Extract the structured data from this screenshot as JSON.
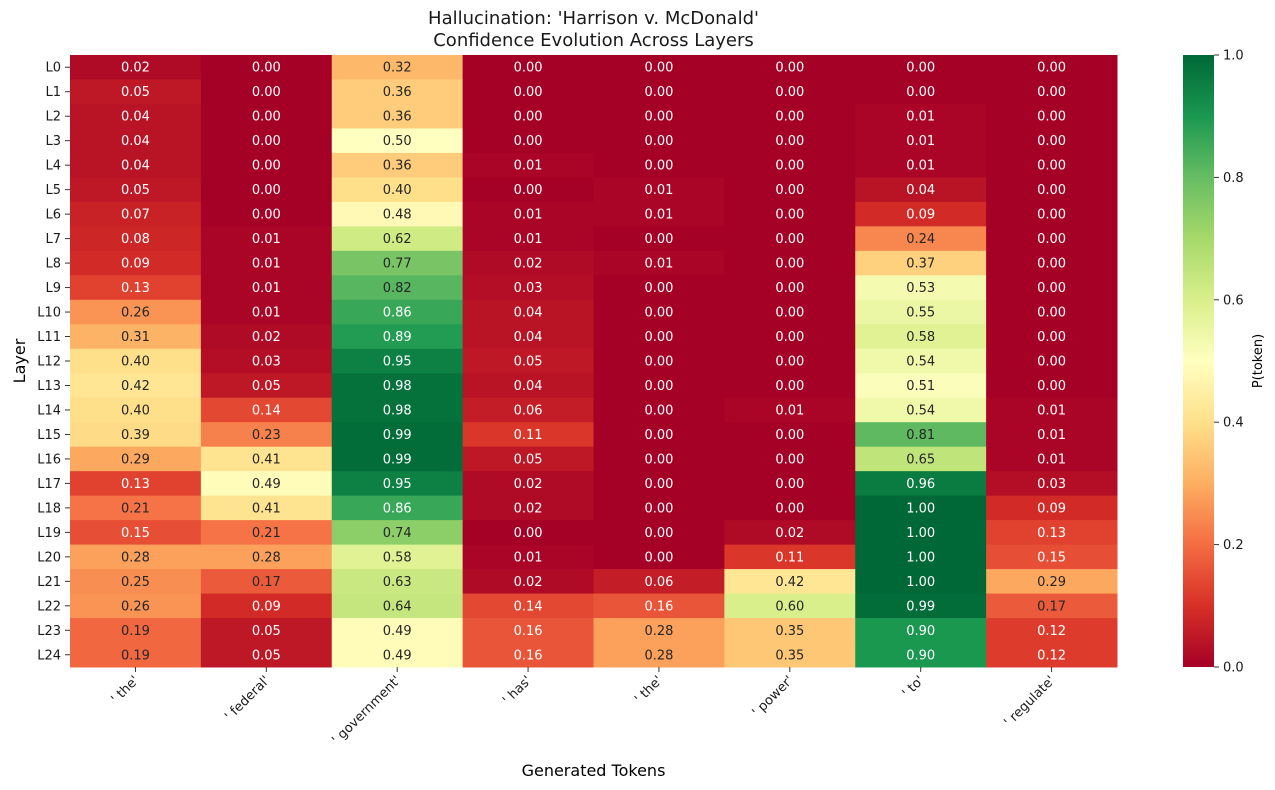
{
  "chart_data": {
    "type": "heatmap",
    "title": "Hallucination: 'Harrison v. McDonald'",
    "subtitle": "Confidence Evolution Across Layers",
    "xlabel": "Generated Tokens",
    "ylabel": "Layer",
    "colorbar_label": "P(token)",
    "colormap": "RdYlGn",
    "vmin": 0,
    "vmax": 1,
    "colorbar_ticks": [
      "0.0",
      "0.2",
      "0.4",
      "0.6",
      "0.8",
      "1.0"
    ],
    "x_tick_labels": [
      "' the'",
      "' federal'",
      "' government'",
      "' has'",
      "' the'",
      "' power'",
      "' to'",
      "' regulate'"
    ],
    "y_tick_labels": [
      "L0",
      "L1",
      "L2",
      "L3",
      "L4",
      "L5",
      "L6",
      "L7",
      "L8",
      "L9",
      "L10",
      "L11",
      "L12",
      "L13",
      "L14",
      "L15",
      "L16",
      "L17",
      "L18",
      "L19",
      "L20",
      "L21",
      "L22",
      "L23",
      "L24"
    ],
    "values": [
      [
        0.02,
        0.0,
        0.32,
        0.0,
        0.0,
        0.0,
        0.0,
        0.0
      ],
      [
        0.05,
        0.0,
        0.36,
        0.0,
        0.0,
        0.0,
        0.0,
        0.0
      ],
      [
        0.04,
        0.0,
        0.36,
        0.0,
        0.0,
        0.0,
        0.01,
        0.0
      ],
      [
        0.04,
        0.0,
        0.5,
        0.0,
        0.0,
        0.0,
        0.01,
        0.0
      ],
      [
        0.04,
        0.0,
        0.36,
        0.01,
        0.0,
        0.0,
        0.01,
        0.0
      ],
      [
        0.05,
        0.0,
        0.4,
        0.0,
        0.01,
        0.0,
        0.04,
        0.0
      ],
      [
        0.07,
        0.0,
        0.48,
        0.01,
        0.01,
        0.0,
        0.09,
        0.0
      ],
      [
        0.08,
        0.01,
        0.62,
        0.01,
        0.0,
        0.0,
        0.24,
        0.0
      ],
      [
        0.09,
        0.01,
        0.77,
        0.02,
        0.01,
        0.0,
        0.37,
        0.0
      ],
      [
        0.13,
        0.01,
        0.82,
        0.03,
        0.0,
        0.0,
        0.53,
        0.0
      ],
      [
        0.26,
        0.01,
        0.86,
        0.04,
        0.0,
        0.0,
        0.55,
        0.0
      ],
      [
        0.31,
        0.02,
        0.89,
        0.04,
        0.0,
        0.0,
        0.58,
        0.0
      ],
      [
        0.4,
        0.03,
        0.95,
        0.05,
        0.0,
        0.0,
        0.54,
        0.0
      ],
      [
        0.42,
        0.05,
        0.98,
        0.04,
        0.0,
        0.0,
        0.51,
        0.0
      ],
      [
        0.4,
        0.14,
        0.98,
        0.06,
        0.0,
        0.01,
        0.54,
        0.01
      ],
      [
        0.39,
        0.23,
        0.99,
        0.11,
        0.0,
        0.0,
        0.81,
        0.01
      ],
      [
        0.29,
        0.41,
        0.99,
        0.05,
        0.0,
        0.0,
        0.65,
        0.01
      ],
      [
        0.13,
        0.49,
        0.95,
        0.02,
        0.0,
        0.0,
        0.96,
        0.03
      ],
      [
        0.21,
        0.41,
        0.86,
        0.02,
        0.0,
        0.0,
        1.0,
        0.09
      ],
      [
        0.15,
        0.21,
        0.74,
        0.0,
        0.0,
        0.02,
        1.0,
        0.13
      ],
      [
        0.28,
        0.28,
        0.58,
        0.01,
        0.0,
        0.11,
        1.0,
        0.15
      ],
      [
        0.25,
        0.17,
        0.63,
        0.02,
        0.06,
        0.42,
        1.0,
        0.29
      ],
      [
        0.26,
        0.09,
        0.64,
        0.14,
        0.16,
        0.6,
        0.99,
        0.17
      ],
      [
        0.19,
        0.05,
        0.49,
        0.16,
        0.28,
        0.35,
        0.9,
        0.12
      ],
      [
        0.19,
        0.05,
        0.49,
        0.16,
        0.28,
        0.35,
        0.9,
        0.12
      ]
    ]
  }
}
